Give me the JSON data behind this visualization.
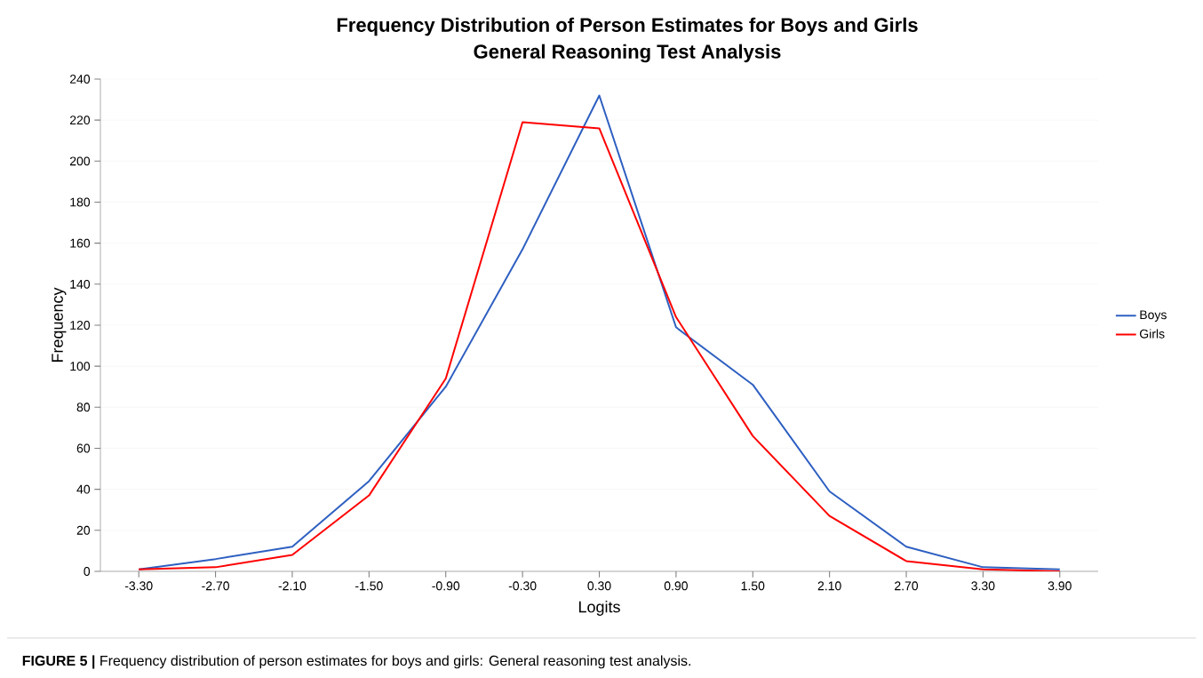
{
  "chart_data": {
    "type": "line",
    "title": "Frequency Distribution of Person Estimates for Boys and Girls",
    "subtitle": "General Reasoning Test Analysis",
    "xlabel": "Logits",
    "ylabel": "Frequency",
    "categories": [
      "-3.30",
      "-2.70",
      "-2.10",
      "-1.50",
      "-0.90",
      "-0.30",
      "0.30",
      "0.90",
      "1.50",
      "2.10",
      "2.70",
      "3.30",
      "3.90"
    ],
    "series": [
      {
        "name": "Boys",
        "color": "#2e5fc1",
        "values": [
          1,
          6,
          12,
          44,
          90,
          157,
          232,
          119,
          91,
          39,
          12,
          2,
          1
        ]
      },
      {
        "name": "Girls",
        "color": "#ff0000",
        "values": [
          1,
          2,
          8,
          37,
          94,
          219,
          216,
          124,
          66,
          27,
          5,
          1,
          0
        ]
      }
    ],
    "ylim": [
      0,
      240
    ],
    "yticks": [
      0,
      20,
      40,
      60,
      80,
      100,
      120,
      140,
      160,
      180,
      200,
      220,
      240
    ],
    "grid": "y",
    "legend": "right",
    "marker": "none",
    "line_style": "solid",
    "annotations": [
      "**FIGURE 5 |** Frequency distribution of person estimates for boys and girls: General reasoning test analysis."
    ]
  }
}
